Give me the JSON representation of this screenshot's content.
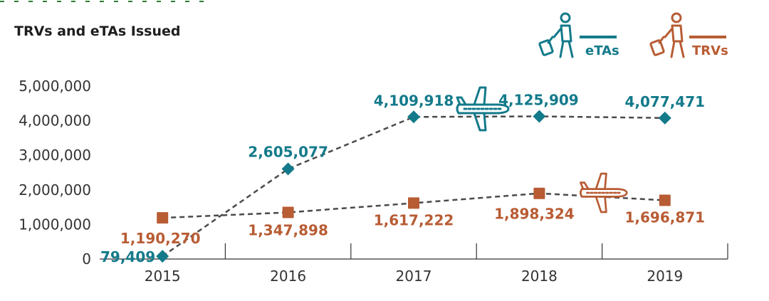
{
  "chart_data": {
    "type": "line",
    "title": "TRVs and eTAs Issued",
    "xlabel": "",
    "ylabel": "",
    "categories": [
      "2015",
      "2016",
      "2017",
      "2018",
      "2019"
    ],
    "ylim": [
      0,
      5000000
    ],
    "yticks": [
      "0",
      "1,000,000",
      "2,000,000",
      "3,000,000",
      "4,000,000",
      "5,000,000"
    ],
    "grid": false,
    "legend_position": "top-right",
    "series": [
      {
        "name": "eTAs",
        "color": "#137a8a",
        "marker": "diamond",
        "values": [
          79409,
          2605077,
          4109918,
          4125909,
          4077471
        ],
        "labels": [
          "79,409",
          "2,605,077",
          "4,109,918",
          "4,125,909",
          "4,077,471"
        ]
      },
      {
        "name": "TRVs",
        "color": "#b85c34",
        "marker": "square",
        "values": [
          1190270,
          1347898,
          1617222,
          1898324,
          1696871
        ],
        "labels": [
          "1,190,270",
          "1,347,898",
          "1,617,222",
          "1,898,324",
          "1,696,871"
        ]
      }
    ],
    "icons": [
      "traveler-with-luggage-icon",
      "airplane-icon"
    ]
  }
}
